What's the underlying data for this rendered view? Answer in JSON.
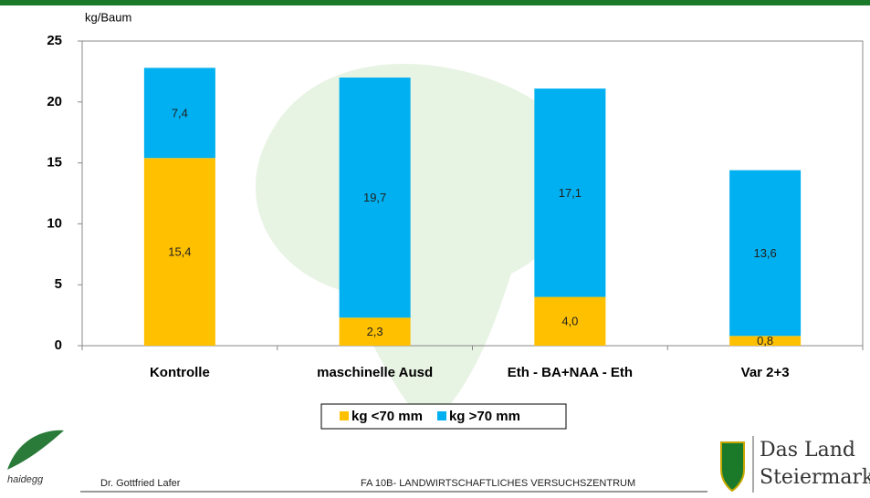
{
  "chart_data": {
    "type": "stacked_bar",
    "y_label": "kg/Baum",
    "categories": [
      "Kontrolle",
      "maschinelle Ausd",
      "Eth - BA+NAA - Eth",
      "Var 2+3"
    ],
    "series": [
      {
        "name": "kg <70 mm",
        "color": "#FFC000",
        "values": [
          15.4,
          2.3,
          4.0,
          0.8
        ],
        "value_labels": [
          "15,4",
          "2,3",
          "4,0",
          "0,8"
        ]
      },
      {
        "name": "kg >70 mm",
        "color": "#00B0F0",
        "values": [
          7.4,
          19.7,
          17.1,
          13.6
        ],
        "value_labels": [
          "7,4",
          "19,7",
          "17,1",
          "13,6"
        ]
      }
    ],
    "ylim": [
      0,
      25
    ],
    "yticks": [
      0,
      5,
      10,
      15,
      20,
      25
    ],
    "grid": false,
    "legend": "bottom"
  },
  "footer": {
    "logo_left": "haidegg",
    "author": "Dr. Gottfried Lafer",
    "institution": "FA 10B- LANDWIRTSCHAFTLICHES VERSUCHSZENTRUM",
    "logo_right": [
      "Das Land",
      "Steiermark"
    ]
  }
}
